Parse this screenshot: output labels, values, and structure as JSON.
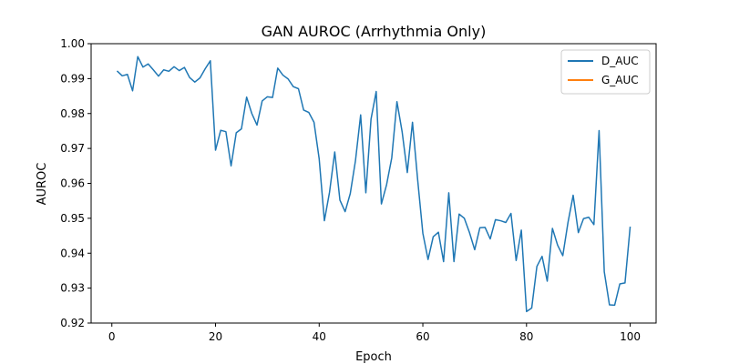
{
  "chart_data": {
    "type": "line",
    "title": "GAN AUROC (Arrhythmia Only)",
    "xlabel": "Epoch",
    "ylabel": "AUROC",
    "xlim": [
      -4,
      105
    ],
    "ylim": [
      0.92,
      1.0
    ],
    "xticks": [
      0,
      20,
      40,
      60,
      80,
      100
    ],
    "yticks": [
      0.92,
      0.93,
      0.94,
      0.95,
      0.96,
      0.97,
      0.98,
      0.99,
      1.0
    ],
    "xtick_labels": [
      "0",
      "20",
      "40",
      "60",
      "80",
      "100"
    ],
    "ytick_labels": [
      "0.92",
      "0.93",
      "0.94",
      "0.95",
      "0.96",
      "0.97",
      "0.98",
      "0.99",
      "1.00"
    ],
    "grid": false,
    "legend_position": "top-right",
    "series": [
      {
        "name": "D_AUC",
        "color": "#1f77b4",
        "x": [
          1,
          2,
          3,
          4,
          5,
          6,
          7,
          8,
          9,
          10,
          11,
          12,
          13,
          14,
          15,
          16,
          17,
          18,
          19,
          20,
          21,
          22,
          23,
          24,
          25,
          26,
          27,
          28,
          29,
          30,
          31,
          32,
          33,
          34,
          35,
          36,
          37,
          38,
          39,
          40,
          41,
          42,
          43,
          44,
          45,
          46,
          47,
          48,
          49,
          50,
          51,
          52,
          53,
          54,
          55,
          56,
          57,
          58,
          59,
          60,
          61,
          62,
          63,
          64,
          65,
          66,
          67,
          68,
          69,
          70,
          71,
          72,
          73,
          74,
          75,
          76,
          77,
          78,
          79,
          80,
          81,
          82,
          83,
          84,
          85,
          86,
          87,
          88,
          89,
          90,
          91,
          92,
          93,
          94,
          95,
          96,
          97,
          98,
          99,
          100
        ],
        "values": [
          0.9922,
          0.9908,
          0.9912,
          0.9865,
          0.9963,
          0.9933,
          0.9942,
          0.9925,
          0.9907,
          0.9925,
          0.9921,
          0.9934,
          0.9923,
          0.9932,
          0.9903,
          0.989,
          0.9902,
          0.9928,
          0.9951,
          0.9695,
          0.9752,
          0.9748,
          0.965,
          0.9745,
          0.9756,
          0.9847,
          0.98,
          0.9767,
          0.9836,
          0.9848,
          0.9846,
          0.993,
          0.991,
          0.9899,
          0.9877,
          0.9871,
          0.981,
          0.9803,
          0.9775,
          0.967,
          0.9493,
          0.9575,
          0.969,
          0.9552,
          0.9519,
          0.9571,
          0.9665,
          0.9796,
          0.9573,
          0.9784,
          0.9863,
          0.9541,
          0.9596,
          0.9673,
          0.9834,
          0.9748,
          0.9631,
          0.9775,
          0.961,
          0.9457,
          0.9382,
          0.9447,
          0.946,
          0.9376,
          0.9573,
          0.9376,
          0.9512,
          0.95,
          0.9459,
          0.941,
          0.9473,
          0.9474,
          0.9441,
          0.9496,
          0.9493,
          0.9488,
          0.9514,
          0.9379,
          0.9466,
          0.9233,
          0.9243,
          0.9362,
          0.9391,
          0.932,
          0.9471,
          0.9423,
          0.9393,
          0.9488,
          0.9566,
          0.9459,
          0.9499,
          0.9503,
          0.9482,
          0.9751,
          0.9347,
          0.9252,
          0.9251,
          0.9312,
          0.9315,
          0.9476
        ]
      },
      {
        "name": "G_AUC",
        "color": "#ff7f0e",
        "x": [],
        "values": []
      }
    ]
  }
}
